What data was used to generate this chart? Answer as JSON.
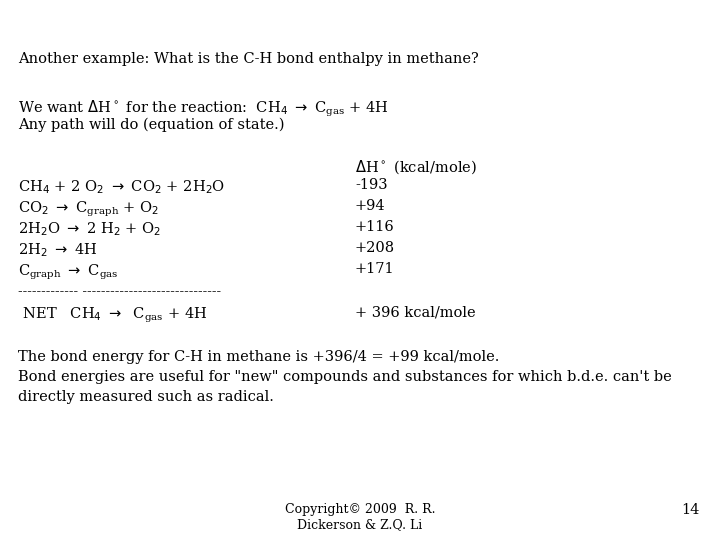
{
  "bg_color": "#ffffff",
  "title_line": "Another example: What is the C-H bond enthalpy in methane?",
  "line3": "Any path will do (equation of state.)",
  "footer1": "The bond energy for C-H in methane is +396/4 = +99 kcal/mole.",
  "footer2": "Bond energies are useful for \"new\" compounds and substances for which b.d.e. can't be",
  "footer3": "directly measured such as radical.",
  "copyright": "Copyright© 2009  R. R.",
  "copyright2": "Dickerson & Z.Q. Li",
  "page_num": "14",
  "font_size": 10.5,
  "small_font_size": 9.0,
  "font_family": "DejaVu Serif"
}
